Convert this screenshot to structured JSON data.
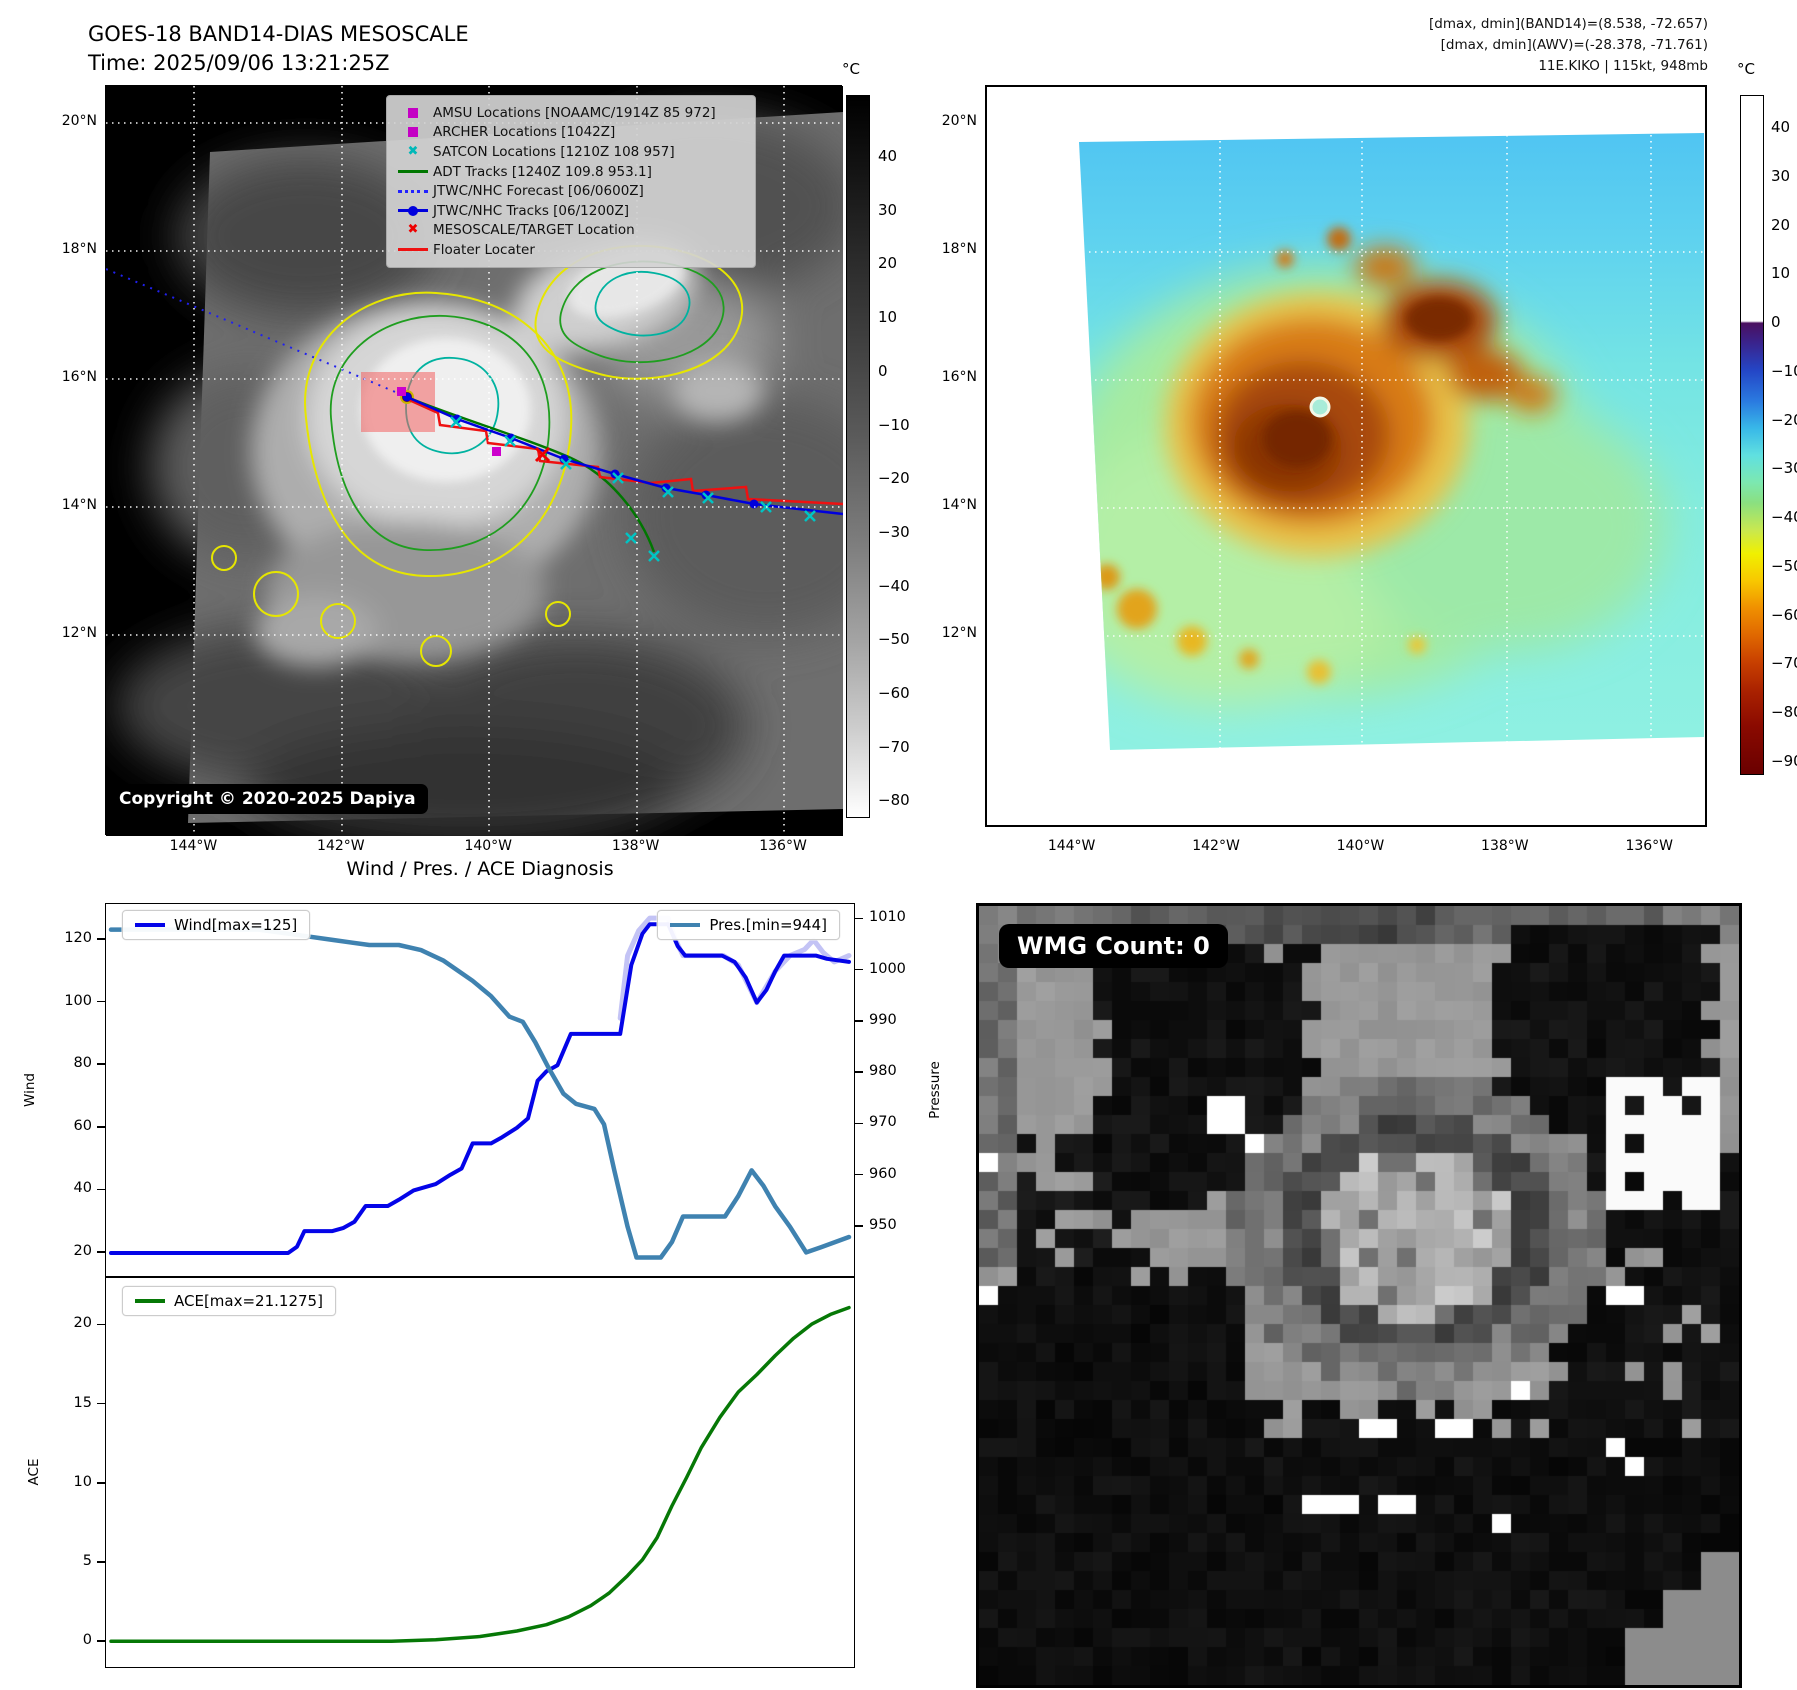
{
  "top_left": {
    "title_line1": "GOES-18 BAND14-DIAS MESOSCALE",
    "title_line2": "Time: 2025/09/06 13:21:25Z",
    "copyright": "Copyright © 2020-2025 Dapiya",
    "x_ticks": [
      "144°W",
      "142°W",
      "140°W",
      "138°W",
      "136°W"
    ],
    "y_ticks": [
      "20°N",
      "18°N",
      "16°N",
      "14°N",
      "12°N"
    ],
    "colorbar": {
      "unit": "°C",
      "ticks": [
        "40",
        "30",
        "20",
        "10",
        "0",
        "−10",
        "−20",
        "−30",
        "−40",
        "−50",
        "−60",
        "−70",
        "−80"
      ]
    },
    "legend": [
      {
        "label": "AMSU Locations [NOAAMC/1914Z 85 972]",
        "marker": "square",
        "color": "#c400c4"
      },
      {
        "label": "ARCHER Locations [1042Z]",
        "marker": "square",
        "color": "#c400c4"
      },
      {
        "label": "SATCON Locations [1210Z 108 957]",
        "marker": "x",
        "color": "#00b8b8"
      },
      {
        "label": "ADT Tracks [1240Z 109.8 953.1]",
        "marker": "line",
        "color": "#007700"
      },
      {
        "label": "JTWC/NHC Forecast [06/0600Z]",
        "marker": "dotted",
        "color": "#2222ff"
      },
      {
        "label": "JTWC/NHC Tracks [06/1200Z]",
        "marker": "line-dot",
        "color": "#0000dd"
      },
      {
        "label": "MESOSCALE/TARGET Location",
        "marker": "x",
        "color": "#ee0000"
      },
      {
        "label": "Floater Locater",
        "marker": "line",
        "color": "#ee1111"
      }
    ]
  },
  "top_right": {
    "annotations": [
      "[dmax, dmin](BAND14)=(8.538, -72.657)",
      "[dmax, dmin](AWV)=(-28.378, -71.761)",
      "11E.KIKO | 115kt, 948mb"
    ],
    "x_ticks": [
      "144°W",
      "142°W",
      "140°W",
      "138°W",
      "136°W"
    ],
    "y_ticks": [
      "20°N",
      "18°N",
      "16°N",
      "14°N",
      "12°N"
    ],
    "colorbar": {
      "unit": "°C",
      "ticks": [
        "40",
        "30",
        "20",
        "10",
        "0",
        "−10",
        "−20",
        "−30",
        "−40",
        "−50",
        "−60",
        "−70",
        "−80",
        "−90"
      ]
    }
  },
  "bottom_left": {
    "title": "Wind / Pres. / ACE Diagnosis"
  },
  "bottom_right": {
    "wmg_label": "WMG Count: 0"
  },
  "chart_data": [
    {
      "type": "line",
      "panel": "wind-pressure",
      "title": "Wind / Pres. / ACE Diagnosis",
      "ylabel_left": "Wind",
      "ylabel_right": "Pressure",
      "ylim_left": [
        12,
        131.5
      ],
      "ylim_right": [
        940,
        1013
      ],
      "yticks_left": [
        20,
        40,
        60,
        80,
        100,
        120
      ],
      "yticks_right": [
        950,
        960,
        970,
        980,
        990,
        1000,
        1010
      ],
      "legend_left": "Wind[max=125]",
      "legend_right": "Pres.[min=944]",
      "series": [
        {
          "name": "wind_overlay",
          "axis": "left",
          "color": "#c3c3f5",
          "width": 5,
          "points": [
            [
              0.69,
              95
            ],
            [
              0.7,
              115
            ],
            [
              0.715,
              123
            ],
            [
              0.73,
              127
            ],
            [
              0.755,
              127
            ],
            [
              0.765,
              120
            ],
            [
              0.775,
              115
            ],
            [
              0.83,
              115
            ],
            [
              0.85,
              112
            ],
            [
              0.875,
              100
            ],
            [
              0.9,
              110
            ],
            [
              0.92,
              115
            ],
            [
              0.94,
              117
            ],
            [
              0.952,
              120
            ],
            [
              0.965,
              116
            ],
            [
              0.98,
              113
            ],
            [
              1,
              115
            ]
          ]
        },
        {
          "name": "Wind[max=125]",
          "axis": "left",
          "color": "#0404e8",
          "width": 4,
          "points": [
            [
              0,
              20
            ],
            [
              0.24,
              20
            ],
            [
              0.252,
              22
            ],
            [
              0.262,
              27
            ],
            [
              0.3,
              27
            ],
            [
              0.315,
              28
            ],
            [
              0.33,
              30
            ],
            [
              0.345,
              35
            ],
            [
              0.375,
              35
            ],
            [
              0.39,
              37
            ],
            [
              0.41,
              40
            ],
            [
              0.44,
              42
            ],
            [
              0.46,
              45
            ],
            [
              0.475,
              47
            ],
            [
              0.49,
              55
            ],
            [
              0.515,
              55
            ],
            [
              0.53,
              57
            ],
            [
              0.55,
              60
            ],
            [
              0.565,
              63
            ],
            [
              0.578,
              75
            ],
            [
              0.59,
              78
            ],
            [
              0.605,
              80
            ],
            [
              0.623,
              90
            ],
            [
              0.69,
              90
            ],
            [
              0.705,
              112
            ],
            [
              0.72,
              122
            ],
            [
              0.73,
              125
            ],
            [
              0.755,
              125
            ],
            [
              0.768,
              118
            ],
            [
              0.778,
              115
            ],
            [
              0.828,
              115
            ],
            [
              0.845,
              113
            ],
            [
              0.86,
              108
            ],
            [
              0.875,
              100
            ],
            [
              0.888,
              104
            ],
            [
              0.9,
              110
            ],
            [
              0.912,
              115
            ],
            [
              0.955,
              115
            ],
            [
              0.97,
              114
            ],
            [
              1,
              113
            ]
          ]
        },
        {
          "name": "Pres.[min=944]",
          "axis": "right",
          "color": "#3f82b0",
          "width": 4.5,
          "points": [
            [
              0,
              1008
            ],
            [
              0.2,
              1008
            ],
            [
              0.25,
              1007
            ],
            [
              0.3,
              1006
            ],
            [
              0.35,
              1005
            ],
            [
              0.39,
              1005
            ],
            [
              0.42,
              1004
            ],
            [
              0.45,
              1002
            ],
            [
              0.47,
              1000
            ],
            [
              0.49,
              998
            ],
            [
              0.515,
              995
            ],
            [
              0.54,
              991
            ],
            [
              0.558,
              990
            ],
            [
              0.575,
              986
            ],
            [
              0.593,
              981
            ],
            [
              0.613,
              976
            ],
            [
              0.63,
              974
            ],
            [
              0.655,
              973
            ],
            [
              0.668,
              970
            ],
            [
              0.682,
              961
            ],
            [
              0.7,
              950
            ],
            [
              0.712,
              944
            ],
            [
              0.745,
              944
            ],
            [
              0.76,
              947
            ],
            [
              0.775,
              952
            ],
            [
              0.832,
              952
            ],
            [
              0.85,
              956
            ],
            [
              0.868,
              961
            ],
            [
              0.884,
              958
            ],
            [
              0.9,
              954
            ],
            [
              0.92,
              950
            ],
            [
              0.942,
              945
            ],
            [
              0.962,
              946
            ],
            [
              1,
              948
            ]
          ]
        }
      ]
    },
    {
      "type": "line",
      "panel": "ace",
      "ylabel_left": "ACE",
      "ylim_left": [
        -1.7,
        23.0
      ],
      "yticks_left": [
        0,
        5,
        10,
        15,
        20
      ],
      "legend_left": "ACE[max=21.1275]",
      "series": [
        {
          "name": "ACE[max=21.1275]",
          "axis": "left",
          "color": "#067806",
          "width": 3.5,
          "points": [
            [
              0,
              0.05
            ],
            [
              0.38,
              0.05
            ],
            [
              0.44,
              0.15
            ],
            [
              0.5,
              0.35
            ],
            [
              0.55,
              0.7
            ],
            [
              0.59,
              1.1
            ],
            [
              0.62,
              1.6
            ],
            [
              0.65,
              2.3
            ],
            [
              0.675,
              3.1
            ],
            [
              0.7,
              4.2
            ],
            [
              0.72,
              5.2
            ],
            [
              0.74,
              6.6
            ],
            [
              0.76,
              8.6
            ],
            [
              0.78,
              10.4
            ],
            [
              0.8,
              12.3
            ],
            [
              0.825,
              14.2
            ],
            [
              0.85,
              15.8
            ],
            [
              0.875,
              16.9
            ],
            [
              0.9,
              18.1
            ],
            [
              0.925,
              19.2
            ],
            [
              0.95,
              20.1
            ],
            [
              0.975,
              20.7
            ],
            [
              1,
              21.13
            ]
          ]
        }
      ]
    }
  ]
}
